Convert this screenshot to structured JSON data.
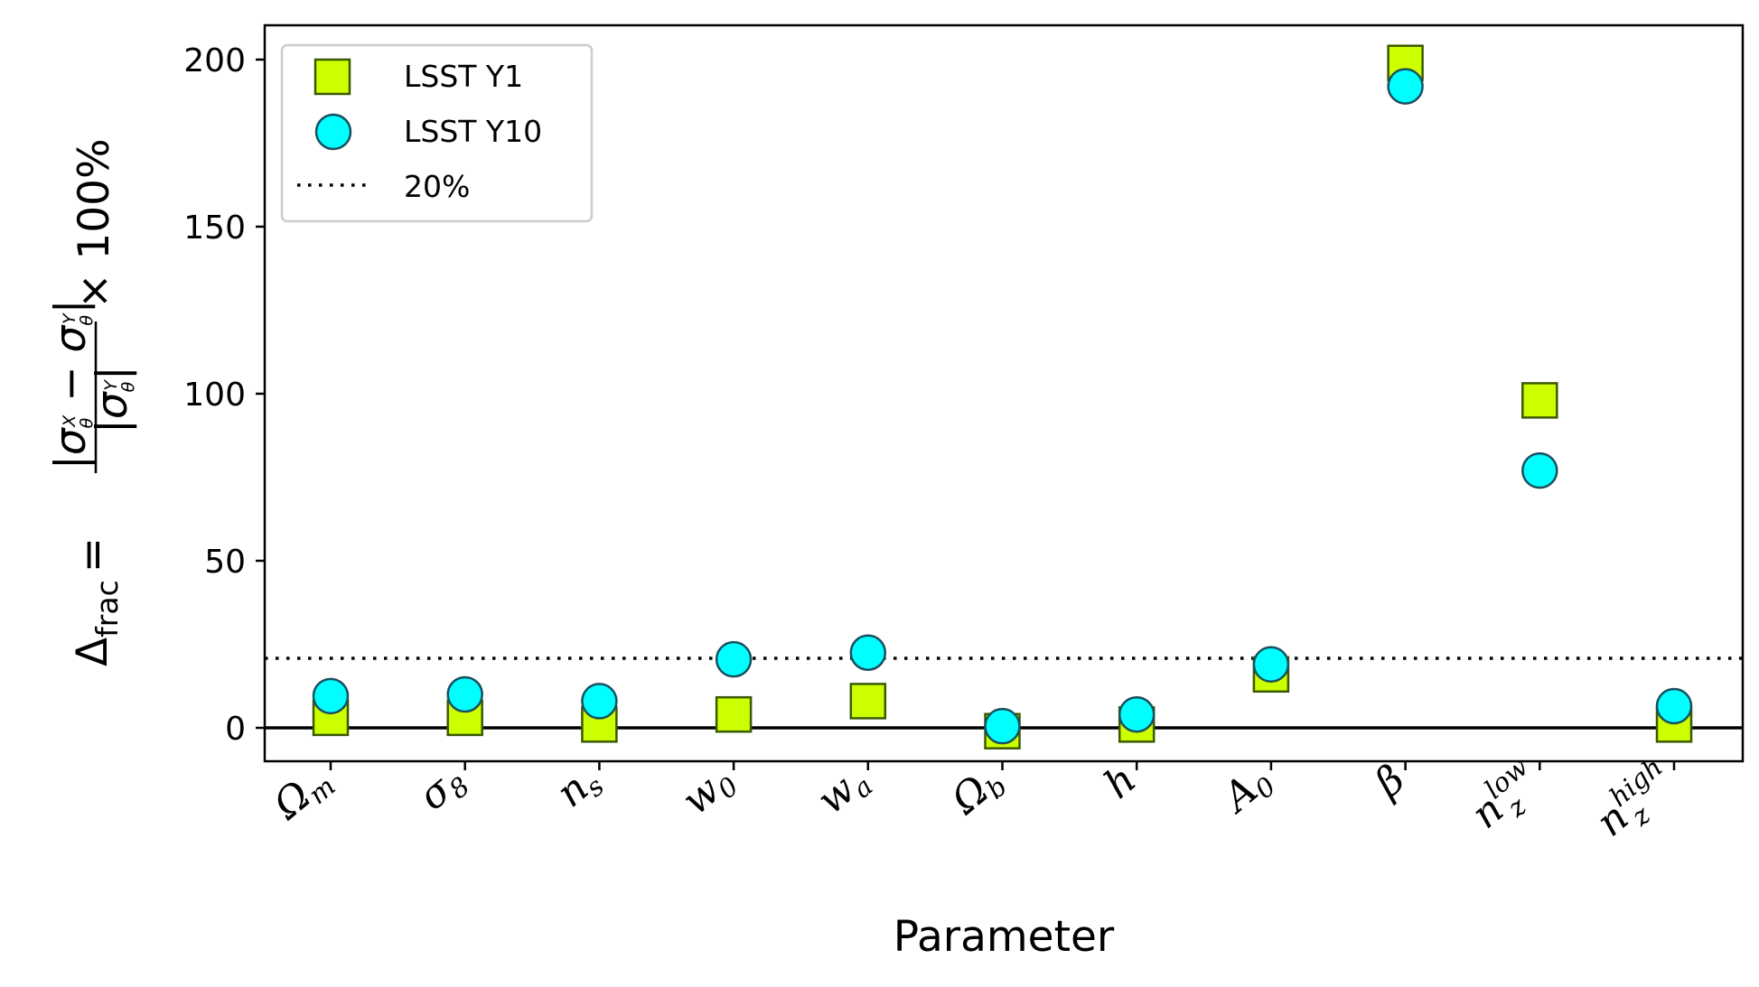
{
  "colors": {
    "y1_fill": "#ccff00",
    "y1_edge": "#3a5a00",
    "y10_fill": "#00ffff",
    "y10_edge": "#1a4f5f",
    "axis": "#000000"
  },
  "chart_data": {
    "type": "scatter",
    "xlabel": "Parameter",
    "ylabel": "Δfrac = |σθX − σθY| / |σθY| × 100%",
    "ylabel_parts": {
      "delta": "Δ",
      "delta_sub": "frac",
      "eq": "=",
      "num_open": "|σ",
      "num_sub": "θ",
      "num_sup_x": "X",
      "minus": " − σ",
      "num_sup_y": "Y",
      "num_close": "|",
      "den_open": "|σ",
      "den_sub": "θ",
      "den_sup": "Y",
      "den_close": "|",
      "times": "× 100%"
    },
    "ylim": [
      -10,
      209
    ],
    "yticks": [
      0,
      50,
      100,
      150,
      200
    ],
    "categories": [
      {
        "main": "Ω",
        "sub": "m",
        "sup": ""
      },
      {
        "main": "σ",
        "sub": "8",
        "sup": ""
      },
      {
        "main": "n",
        "sub": "s",
        "sup": ""
      },
      {
        "main": "w",
        "sub": "0",
        "sup": ""
      },
      {
        "main": "w",
        "sub": "a",
        "sup": ""
      },
      {
        "main": "Ω",
        "sub": "b",
        "sup": ""
      },
      {
        "main": "h",
        "sub": "",
        "sup": ""
      },
      {
        "main": "A",
        "sub": "0",
        "sup": ""
      },
      {
        "main": "β",
        "sub": "",
        "sup": ""
      },
      {
        "main": "n",
        "sub": "z",
        "sup": "low"
      },
      {
        "main": "n",
        "sub": "z",
        "sup": "high"
      }
    ],
    "series": [
      {
        "name": "LSST Y1",
        "marker": "square",
        "values": [
          3,
          3,
          1,
          4,
          8,
          -1,
          1,
          16,
          199,
          98,
          1
        ]
      },
      {
        "name": "LSST Y10",
        "marker": "circle",
        "values": [
          9.5,
          10,
          8,
          20.5,
          22.5,
          0.5,
          4,
          19,
          192,
          77,
          6.5
        ]
      }
    ],
    "reference_lines": [
      {
        "name": "20%",
        "y": 20,
        "style": "dotted"
      },
      {
        "y": 0,
        "style": "solid"
      }
    ],
    "grid": false,
    "legend_position": "top-left"
  }
}
